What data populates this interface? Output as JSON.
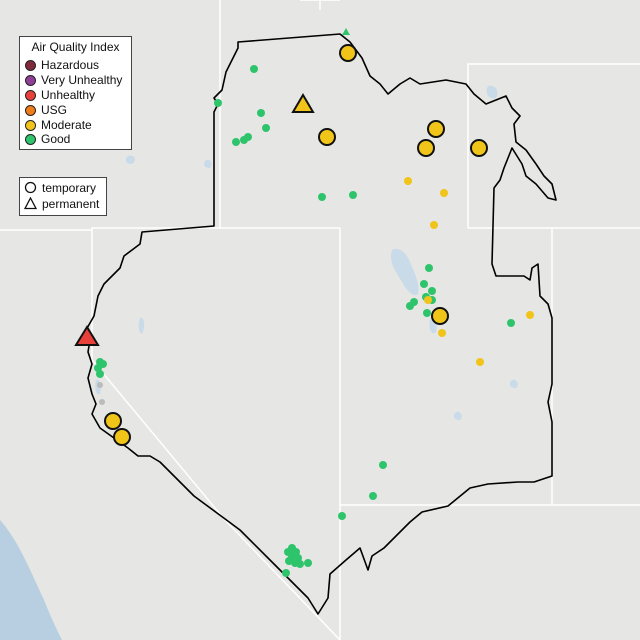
{
  "legend": {
    "title": "Air Quality Index",
    "categories": [
      {
        "label": "Hazardous",
        "color": "#7e2a3a"
      },
      {
        "label": "Very Unhealthy",
        "color": "#8f3f97"
      },
      {
        "label": "Unhealthy",
        "color": "#e8413c"
      },
      {
        "label": "USG",
        "color": "#f07d1a"
      },
      {
        "label": "Moderate",
        "color": "#f0c419"
      },
      {
        "label": "Good",
        "color": "#2ec46c"
      }
    ],
    "types": [
      {
        "label": "temporary",
        "symbol": "circle"
      },
      {
        "label": "permanent",
        "symbol": "triangle"
      }
    ]
  },
  "colors": {
    "land": "#e6e6e4",
    "water": "#c9dbe8",
    "ocean": "#b7cfe0",
    "border": "#000000",
    "stateline": "#ffffff"
  }
}
